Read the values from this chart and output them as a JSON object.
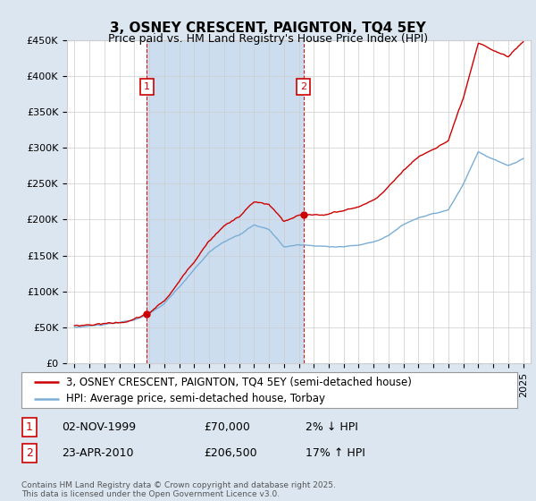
{
  "title": "3, OSNEY CRESCENT, PAIGNTON, TQ4 5EY",
  "subtitle": "Price paid vs. HM Land Registry's House Price Index (HPI)",
  "ylabel_ticks": [
    "£0",
    "£50K",
    "£100K",
    "£150K",
    "£200K",
    "£250K",
    "£300K",
    "£350K",
    "£400K",
    "£450K"
  ],
  "ylim": [
    0,
    450000
  ],
  "xlim": [
    1994.5,
    2025.5
  ],
  "sale1_date": 1999.84,
  "sale1_price": 70000,
  "sale1_label": "1",
  "sale1_text": "02-NOV-1999",
  "sale1_price_text": "£70,000",
  "sale1_hpi_text": "2% ↓ HPI",
  "sale2_date": 2010.31,
  "sale2_price": 206500,
  "sale2_label": "2",
  "sale2_text": "23-APR-2010",
  "sale2_price_text": "£206,500",
  "sale2_hpi_text": "17% ↑ HPI",
  "hpi_color": "#7aaed6",
  "price_color": "#cc0000",
  "background_color": "#dce6f0",
  "shade_color": "#ccddef",
  "plot_bg": "#ffffff",
  "legend_line1": "3, OSNEY CRESCENT, PAIGNTON, TQ4 5EY (semi-detached house)",
  "legend_line2": "HPI: Average price, semi-detached house, Torbay",
  "footer": "Contains HM Land Registry data © Crown copyright and database right 2025.\nThis data is licensed under the Open Government Licence v3.0.",
  "title_fontsize": 11,
  "subtitle_fontsize": 9,
  "tick_fontsize": 8,
  "legend_fontsize": 8.5
}
